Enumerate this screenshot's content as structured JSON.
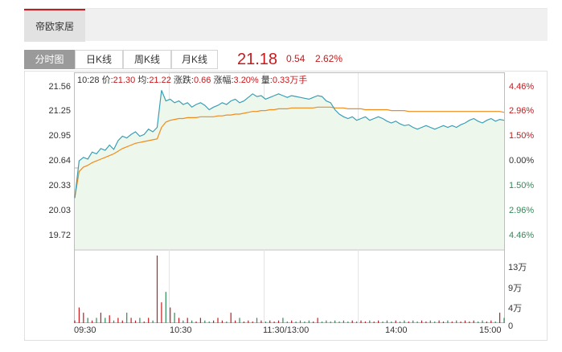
{
  "top_tab": {
    "label": "帝欧家居"
  },
  "period_tabs": [
    {
      "label": "分时图",
      "active": true
    },
    {
      "label": "日K线",
      "active": false
    },
    {
      "label": "周K线",
      "active": false
    },
    {
      "label": "月K线",
      "active": false
    }
  ],
  "quote": {
    "price": "21.18",
    "change": "0.54",
    "change_pct": "2.62%"
  },
  "info": {
    "time": "10:28",
    "price_label": "价:",
    "price": "21.30",
    "avg_label": "均:",
    "avg": "21.22",
    "change_label": "涨跌:",
    "change": "0.66",
    "pct_label": "涨幅:",
    "pct": "3.20%",
    "volume_label": "量:",
    "volume": "0.33万手"
  },
  "colors": {
    "up": "#c8191c",
    "down": "#2e8b57",
    "price_line": "#3a9fb5",
    "avg_line": "#f08c1a",
    "fill": "#eef7ec"
  },
  "chart_data": {
    "type": "line",
    "y_left_ticks": [
      "21.56",
      "21.25",
      "20.95",
      "20.64",
      "20.33",
      "20.03",
      "19.72"
    ],
    "y_right_ticks": [
      "4.46%",
      "2.96%",
      "1.50%",
      "0.00%",
      "1.50%",
      "2.96%",
      "4.46%"
    ],
    "x_ticks": [
      "09:30",
      "10:30",
      "11:30/13:00",
      "14:00",
      "15:00"
    ],
    "volume_ticks": [
      "13万",
      "9万",
      "4万",
      "0"
    ],
    "ylim": [
      19.72,
      21.56
    ],
    "prev_close": 20.64,
    "series": [
      {
        "values": [
          20.3,
          20.72,
          20.76,
          20.74,
          20.82,
          20.8,
          20.86,
          20.84,
          20.9,
          20.85,
          20.95,
          21.0,
          20.98,
          21.02,
          21.05,
          21.0,
          21.02,
          21.08,
          21.05,
          21.1,
          21.52,
          21.4,
          21.42,
          21.38,
          21.4,
          21.36,
          21.38,
          21.33,
          21.36,
          21.38,
          21.35,
          21.3,
          21.33,
          21.35,
          21.38,
          21.36,
          21.4,
          21.42,
          21.38,
          21.4,
          21.44,
          21.48,
          21.45,
          21.46,
          21.42,
          21.44,
          21.46,
          21.48,
          21.46,
          21.44,
          21.46,
          21.45,
          21.44,
          21.43,
          21.42,
          21.44,
          21.46,
          21.45,
          21.4,
          21.38,
          21.3,
          21.25,
          21.22,
          21.2,
          21.22,
          21.18,
          21.2,
          21.22,
          21.18,
          21.2,
          21.22,
          21.2,
          21.17,
          21.15,
          21.17,
          21.14,
          21.12,
          21.13,
          21.1,
          21.08,
          21.1,
          21.12,
          21.1,
          21.08,
          21.1,
          21.12,
          21.1,
          21.12,
          21.1,
          21.13,
          21.15,
          21.18,
          21.2,
          21.17,
          21.15,
          21.18,
          21.2,
          21.17,
          21.19,
          21.18
        ]
      },
      {
        "values": [
          20.3,
          20.6,
          20.65,
          20.67,
          20.7,
          20.72,
          20.74,
          20.76,
          20.78,
          20.8,
          20.83,
          20.86,
          20.88,
          20.9,
          20.92,
          20.93,
          20.94,
          20.95,
          20.96,
          20.97,
          21.1,
          21.16,
          21.18,
          21.19,
          21.2,
          21.2,
          21.21,
          21.21,
          21.21,
          21.22,
          21.22,
          21.22,
          21.22,
          21.23,
          21.23,
          21.24,
          21.24,
          21.25,
          21.25,
          21.26,
          21.27,
          21.28,
          21.28,
          21.29,
          21.29,
          21.3,
          21.3,
          21.31,
          21.31,
          21.31,
          21.32,
          21.32,
          21.32,
          21.32,
          21.32,
          21.32,
          21.33,
          21.33,
          21.33,
          21.33,
          21.32,
          21.32,
          21.32,
          21.31,
          21.31,
          21.31,
          21.31,
          21.3,
          21.3,
          21.3,
          21.3,
          21.3,
          21.3,
          21.29,
          21.29,
          21.29,
          21.29,
          21.28,
          21.28,
          21.28,
          21.28,
          21.28,
          21.28,
          21.28,
          21.28,
          21.28,
          21.28,
          21.28,
          21.28,
          21.28,
          21.28,
          21.28,
          21.28,
          21.28,
          21.28,
          21.28,
          21.28,
          21.28,
          21.28,
          21.27
        ]
      }
    ],
    "volume_max": 13,
    "volume": [
      0.5,
      3,
      2,
      1,
      0.5,
      1,
      2,
      1,
      1.5,
      0.5,
      1,
      0.5,
      2,
      1,
      0.5,
      1,
      0.3,
      1,
      0.5,
      13,
      4,
      6,
      3,
      2,
      1,
      0.5,
      1,
      0.5,
      0.3,
      1,
      0.5,
      0.3,
      0.5,
      1,
      0.5,
      0.3,
      2,
      0.5,
      1,
      0.3,
      0.5,
      0.3,
      1,
      0.5,
      0.3,
      0.5,
      0.3,
      0.5,
      1,
      0.3,
      0.5,
      0.3,
      0.5,
      0.3,
      0.5,
      0.3,
      1,
      0.3,
      0.5,
      0.3,
      0.5,
      0.3,
      0.5,
      0.3,
      0.5,
      0.3,
      0.5,
      0.3,
      0.5,
      0.3,
      0.5,
      0.3,
      0.5,
      0.3,
      0.5,
      0.3,
      0.5,
      0.3,
      0.5,
      0.3,
      0.5,
      0.3,
      0.5,
      0.3,
      0.5,
      0.3,
      0.5,
      0.3,
      0.5,
      0.3,
      0.5,
      0.3,
      0.5,
      0.3,
      0.5,
      0.3,
      0.5,
      0.3,
      2,
      1
    ]
  }
}
